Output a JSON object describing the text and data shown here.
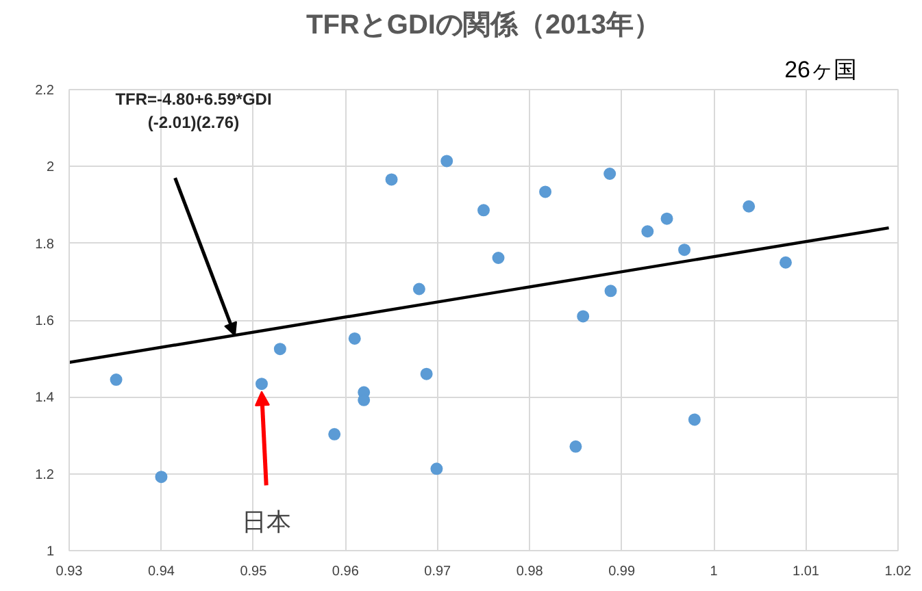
{
  "chart_data": {
    "type": "scatter",
    "title": "TFRとGDIの関係（2013年）",
    "x": [
      0.9351,
      0.94,
      0.9509,
      0.9529,
      0.9588,
      0.961,
      0.962,
      0.962,
      0.965,
      0.968,
      0.9688,
      0.9699,
      0.971,
      0.975,
      0.9766,
      0.9817,
      0.9887,
      0.9858,
      0.9888,
      0.985,
      0.9928,
      0.9949,
      0.9968,
      0.9979,
      1.0038,
      1.0078
    ],
    "series": [
      {
        "color": "#5b9bd5",
        "marker": "circle",
        "values": [
          1.445,
          1.192,
          1.434,
          1.525,
          1.303,
          1.552,
          1.412,
          1.392,
          1.966,
          1.681,
          1.46,
          1.213,
          2.014,
          1.886,
          1.762,
          1.934,
          1.981,
          1.61,
          1.676,
          1.271,
          1.831,
          1.864,
          1.783,
          1.341,
          1.896,
          1.75
        ]
      },
      {
        "type": "line",
        "color": "#000000",
        "x": [
          0.93,
          1.019
        ],
        "values": [
          1.49,
          1.84
        ]
      }
    ],
    "annotations": [
      "TFR=-4.80+6.59*GDI\n(-2.01)(2.76)",
      {
        "text": "日本",
        "x": 0.9509,
        "y": 1.434
      },
      "26ヶ国"
    ],
    "xlim": [
      0.93,
      1.02
    ],
    "xticks": [
      0.93,
      0.94,
      0.95,
      0.96,
      0.97,
      0.98,
      0.99,
      1,
      1.01,
      1.02
    ],
    "ylim": [
      1,
      2.2
    ],
    "yticks": [
      1,
      1.2,
      1.4,
      1.6,
      1.8,
      2,
      2.2
    ],
    "grid": true
  }
}
